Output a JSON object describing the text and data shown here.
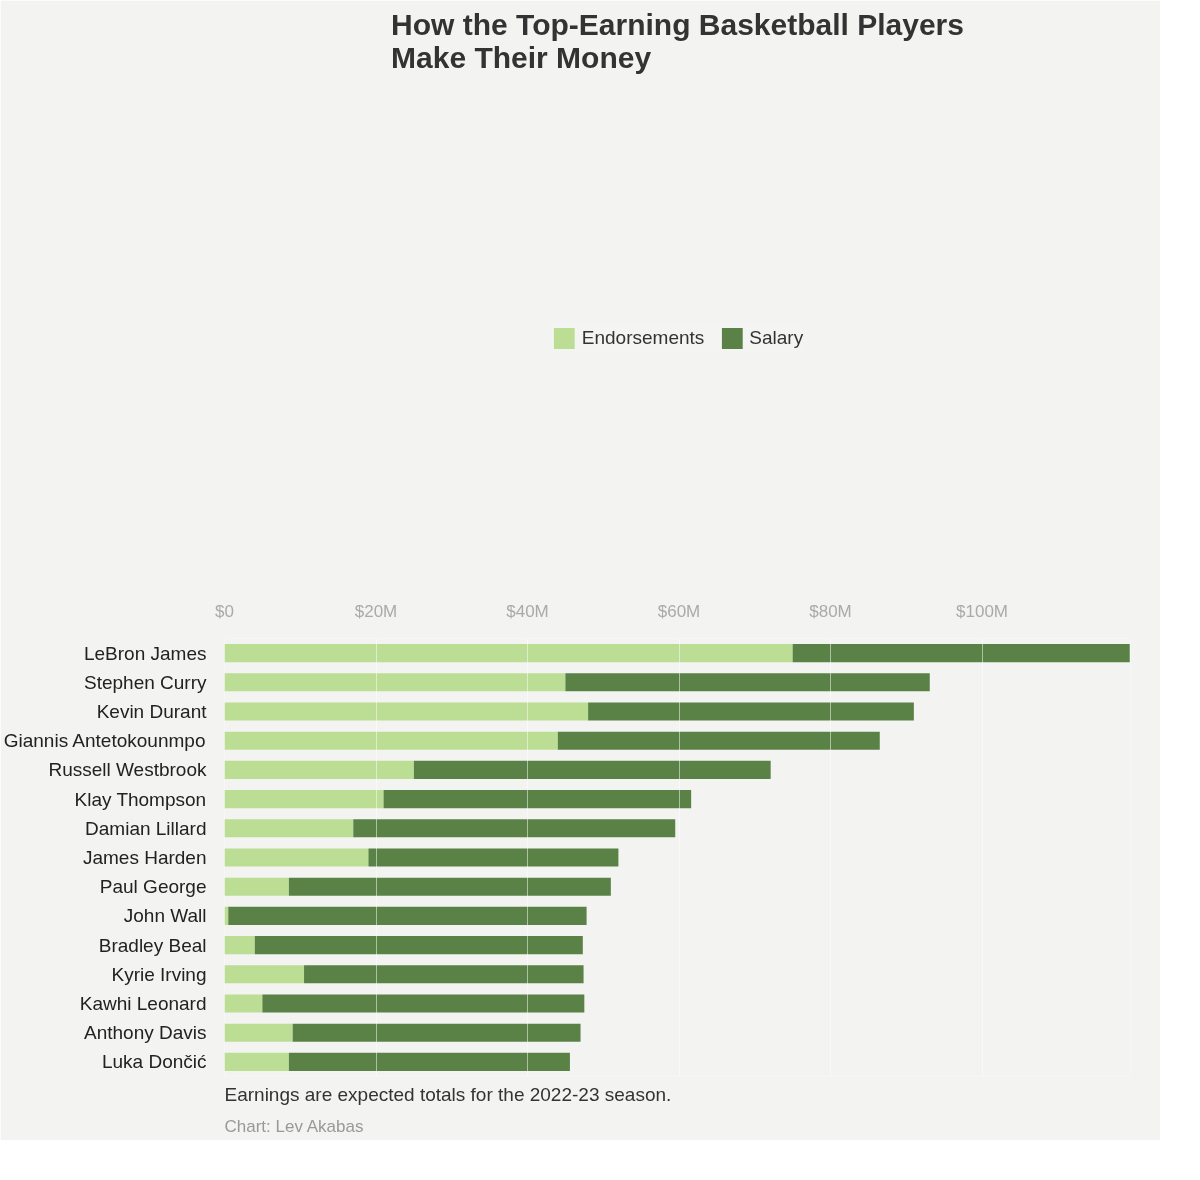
{
  "chart_data": {
    "type": "bar",
    "orientation": "horizontal",
    "stacked": true,
    "title": "How the Top-Earning Basketball Players\nMake Their Money",
    "categories": [
      "LeBron James",
      "Stephen Curry",
      "Kevin Durant",
      "Giannis Antetokounmpo",
      "Russell Westbrook",
      "Klay Thompson",
      "Damian Lillard",
      "James Harden",
      "Paul George",
      "John Wall",
      "Bradley Beal",
      "Kyrie Irving",
      "Kawhi Leonard",
      "Anthony Davis",
      "Luka Dončić"
    ],
    "series": [
      {
        "name": "Endorsements",
        "color": "#bcdd94",
        "values": [
          75,
          45,
          48,
          44,
          25,
          21,
          17,
          19,
          8.5,
          0.5,
          4,
          10.5,
          5,
          9,
          8.5
        ]
      },
      {
        "name": "Salary",
        "color": "#5a8246",
        "values": [
          44.5,
          48.1,
          43,
          42.5,
          47.1,
          40.6,
          42.5,
          33,
          42.5,
          47.3,
          43.3,
          36.9,
          42.5,
          38,
          37.1
        ]
      }
    ],
    "xlim": [
      0,
      119.6
    ],
    "xticks": [
      {
        "value": 0,
        "label": "$0"
      },
      {
        "value": 20,
        "label": "$20M"
      },
      {
        "value": 40,
        "label": "$40M"
      },
      {
        "value": 60,
        "label": "$60M"
      },
      {
        "value": 80,
        "label": "$80M"
      },
      {
        "value": 100,
        "label": "$100M"
      }
    ],
    "grid": "x",
    "legend": "top",
    "annotations": [
      "Earnings are expected totals for the 2022-23 season.",
      "Chart: Lev Akabas"
    ]
  }
}
